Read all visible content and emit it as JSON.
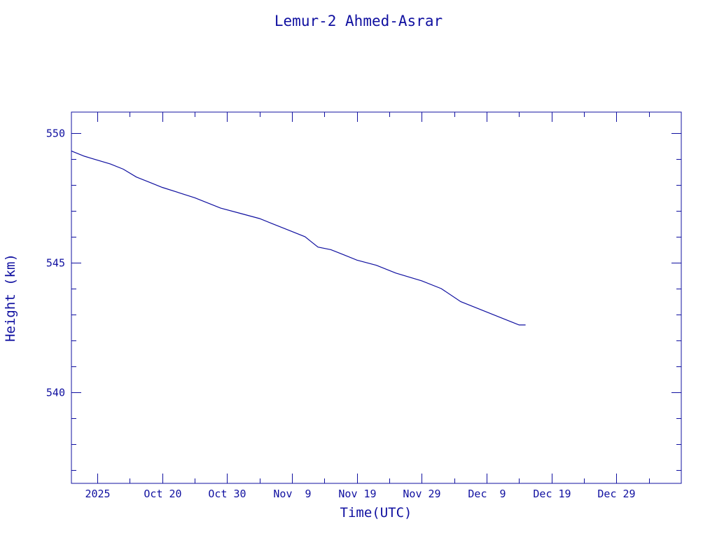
{
  "chart_data": {
    "type": "line",
    "title": "Lemur-2 Ahmed-Asrar",
    "xlabel": "Time(UTC)",
    "ylabel": "Height (km)",
    "x_date_range": [
      "2025-10-06",
      "2026-01-08"
    ],
    "ylim": [
      536.5,
      550.8
    ],
    "x_tick_labels": [
      {
        "date": "2025-10-10",
        "label": "2025"
      },
      {
        "date": "2025-10-20",
        "label": "Oct 20"
      },
      {
        "date": "2025-10-30",
        "label": "Oct 30"
      },
      {
        "date": "2025-11-09",
        "label": "Nov  9"
      },
      {
        "date": "2025-11-19",
        "label": "Nov 19"
      },
      {
        "date": "2025-11-29",
        "label": "Nov 29"
      },
      {
        "date": "2025-12-09",
        "label": "Dec  9"
      },
      {
        "date": "2025-12-19",
        "label": "Dec 19"
      },
      {
        "date": "2025-12-29",
        "label": "Dec 29"
      }
    ],
    "x_minor_tick_dates": [
      "2025-10-10",
      "2025-10-15",
      "2025-10-20",
      "2025-10-25",
      "2025-10-30",
      "2025-11-04",
      "2025-11-09",
      "2025-11-14",
      "2025-11-19",
      "2025-11-24",
      "2025-11-29",
      "2025-12-04",
      "2025-12-09",
      "2025-12-14",
      "2025-12-19",
      "2025-12-24",
      "2025-12-29",
      "2026-01-03"
    ],
    "y_major_ticks": [
      540,
      545,
      550
    ],
    "y_minor_ticks": [
      537,
      538,
      539,
      541,
      542,
      543,
      544,
      546,
      547,
      548,
      549
    ],
    "grid": false,
    "series": [
      {
        "color": "#1010a0",
        "x": [
          "2025-10-06",
          "2025-10-08",
          "2025-10-12",
          "2025-10-14",
          "2025-10-16",
          "2025-10-18",
          "2025-10-20",
          "2025-10-25",
          "2025-10-29",
          "2025-11-01",
          "2025-11-04",
          "2025-11-06",
          "2025-11-08",
          "2025-11-11",
          "2025-11-12",
          "2025-11-13",
          "2025-11-15",
          "2025-11-17",
          "2025-11-19",
          "2025-11-22",
          "2025-11-25",
          "2025-11-29",
          "2025-12-02",
          "2025-12-05",
          "2025-12-08",
          "2025-12-11",
          "2025-12-13",
          "2025-12-14",
          "2025-12-15"
        ],
        "y": [
          549.3,
          549.1,
          548.8,
          548.6,
          548.3,
          548.1,
          547.9,
          547.5,
          547.1,
          546.9,
          546.7,
          546.5,
          546.3,
          546.0,
          545.8,
          545.6,
          545.5,
          545.3,
          545.1,
          544.9,
          544.6,
          544.3,
          544.0,
          543.5,
          543.2,
          542.9,
          542.7,
          542.6,
          542.6
        ]
      }
    ]
  }
}
